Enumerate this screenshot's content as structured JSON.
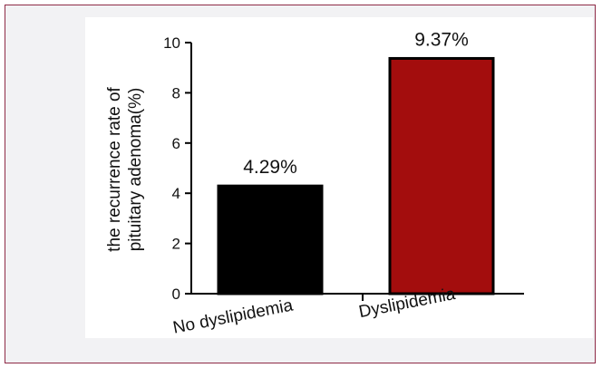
{
  "chart_data": {
    "type": "bar",
    "categories": [
      "No dyslipidemia",
      "Dyslipidemia"
    ],
    "values": [
      4.29,
      9.37
    ],
    "data_labels": [
      "4.29%",
      "9.37%"
    ],
    "colors": [
      "#000000",
      "#a30d0d"
    ],
    "title": "",
    "xlabel": "",
    "ylabel_lines": [
      "the recurrence rate of",
      "pituitary adenoma(%)"
    ],
    "ylim": [
      0,
      10
    ],
    "yticks": [
      0,
      2,
      4,
      6,
      8,
      10
    ],
    "ytick_labels": [
      "0",
      "2",
      "4",
      "6",
      "8",
      "10"
    ],
    "grid": false,
    "legend": "none"
  },
  "colors": {
    "frame_border": "#8e2a46",
    "frame_background": "#f2f2f4",
    "panel_background": "#ffffff"
  }
}
